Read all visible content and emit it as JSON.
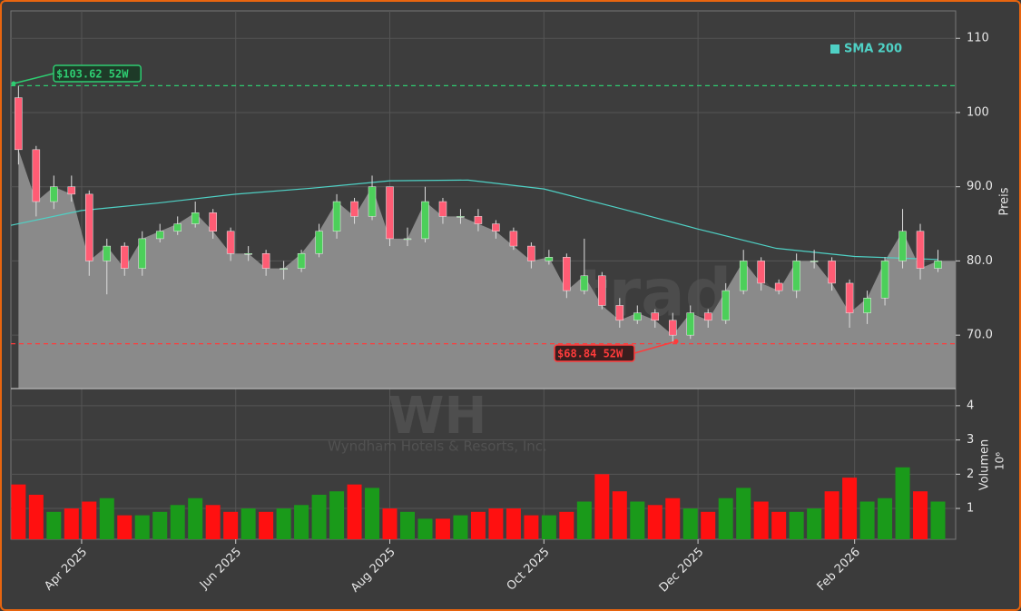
{
  "watermark": {
    "site": "forexsignale.trade",
    "ticker": "WH",
    "company": "Wyndham Hotels & Resorts, Inc."
  },
  "chart_data": [
    {
      "type": "candlestick",
      "y_label": "Preis",
      "xlim": [
        "2025-03-04",
        "2026-03-13"
      ],
      "ylim": [
        62.8,
        113.7
      ],
      "yticks": [
        {
          "value": 70,
          "label": "70.0"
        },
        {
          "value": 80,
          "label": "80.0"
        },
        {
          "value": 90,
          "label": "90.0"
        },
        100,
        110
      ],
      "grid": true,
      "up_color": "#4ccf5a",
      "down_color": "#ff5c74",
      "area_color": "#8a8a8a",
      "x": [
        "2025-03-07",
        "2025-03-14",
        "2025-03-21",
        "2025-03-28",
        "2025-04-04",
        "2025-04-11",
        "2025-04-18",
        "2025-04-25",
        "2025-05-02",
        "2025-05-09",
        "2025-05-16",
        "2025-05-23",
        "2025-05-30",
        "2025-06-06",
        "2025-06-13",
        "2025-06-20",
        "2025-06-27",
        "2025-07-04",
        "2025-07-11",
        "2025-07-18",
        "2025-07-25",
        "2025-08-01",
        "2025-08-08",
        "2025-08-15",
        "2025-08-22",
        "2025-08-29",
        "2025-09-05",
        "2025-09-12",
        "2025-09-19",
        "2025-09-26",
        "2025-10-03",
        "2025-10-10",
        "2025-10-17",
        "2025-10-24",
        "2025-10-31",
        "2025-11-07",
        "2025-11-14",
        "2025-11-21",
        "2025-11-28",
        "2025-12-05",
        "2025-12-12",
        "2025-12-19",
        "2025-12-26",
        "2026-01-02",
        "2026-01-09",
        "2026-01-16",
        "2026-01-23",
        "2026-01-30",
        "2026-02-06",
        "2026-02-13",
        "2026-02-20",
        "2026-02-27",
        "2026-03-06"
      ],
      "open": [
        102,
        95,
        88,
        90,
        89,
        80,
        82,
        79,
        83,
        84,
        85,
        86.5,
        84,
        81,
        81,
        79,
        79,
        81,
        84,
        88,
        86,
        90,
        83,
        83,
        88,
        86,
        86,
        85,
        84,
        82,
        80,
        80.5,
        76,
        78,
        74,
        72,
        73,
        72,
        70,
        73,
        72,
        76,
        80,
        77,
        76,
        80,
        80,
        77,
        73,
        75,
        80,
        84,
        79
      ],
      "high": [
        103.62,
        95.5,
        91.5,
        91.5,
        89.5,
        83,
        82.5,
        84,
        85,
        86,
        88,
        87,
        84.5,
        82,
        81.5,
        80,
        81.5,
        85,
        89,
        88.5,
        91.5,
        90,
        84.5,
        90,
        88.5,
        87,
        87,
        85.5,
        84.5,
        82.5,
        81.5,
        81,
        83,
        78.5,
        75,
        74,
        73.5,
        73,
        74,
        73.5,
        77,
        81.5,
        80.5,
        77.5,
        81,
        81.5,
        80.5,
        77.5,
        76,
        80.5,
        87,
        85,
        81.5
      ],
      "low": [
        93,
        86,
        87,
        88,
        78,
        75.5,
        78,
        78,
        82.5,
        83.5,
        84.5,
        83,
        80,
        80,
        78,
        77.5,
        78.5,
        80.5,
        83,
        85,
        85.5,
        82,
        82,
        82.5,
        85,
        85,
        84,
        83,
        81.5,
        79,
        79.5,
        75,
        75.5,
        73.5,
        71,
        71.5,
        71,
        68.84,
        69.5,
        71,
        71.5,
        75.5,
        76,
        75.5,
        75,
        79,
        76,
        71,
        71.5,
        74,
        79,
        77.5,
        78.5
      ],
      "close": [
        95,
        88,
        90,
        89,
        80,
        82,
        79,
        83,
        84,
        85,
        86.5,
        84,
        81,
        81,
        79,
        79,
        81,
        84,
        88,
        86,
        90,
        83,
        83,
        88,
        86,
        86,
        85,
        84,
        82,
        80,
        80.5,
        76,
        78,
        74,
        72,
        73,
        72,
        70,
        73,
        72,
        76,
        80,
        77,
        76,
        80,
        80,
        77,
        73,
        75,
        80,
        84,
        79,
        80
      ],
      "series": [
        {
          "name": "SMA 200",
          "color": "#4fd1c5",
          "x": [
            "2025-03-04",
            "2025-04-01",
            "2025-05-01",
            "2025-06-01",
            "2025-07-01",
            "2025-08-01",
            "2025-09-01",
            "2025-10-01",
            "2025-11-01",
            "2025-12-01",
            "2026-01-01",
            "2026-02-01",
            "2026-03-06"
          ],
          "values": [
            84.8,
            86.8,
            87.8,
            89.0,
            89.8,
            90.8,
            90.9,
            89.7,
            87.0,
            84.3,
            81.7,
            80.6,
            80.2
          ]
        }
      ],
      "annotations": [
        {
          "text": "$103.62 52W",
          "value": 103.62,
          "color": "#2ecc71"
        },
        {
          "text": "$68.84 52W",
          "value": 68.84,
          "color": "#ff3b3b"
        }
      ]
    },
    {
      "type": "bar",
      "y_label": "Volumen",
      "y_unit": "10⁶",
      "xlim": [
        "2025-03-04",
        "2026-03-13"
      ],
      "xticks": [
        {
          "value": "2025-04-01",
          "label": "Apr 2025"
        },
        {
          "value": "2025-06-01",
          "label": "Jun 2025"
        },
        {
          "value": "2025-08-01",
          "label": "Aug 2025"
        },
        {
          "value": "2025-10-01",
          "label": "Oct 2025"
        },
        {
          "value": "2025-12-01",
          "label": "Dec 2025"
        },
        {
          "value": "2026-02-01",
          "label": "Feb 2026"
        }
      ],
      "ylim": [
        0.1,
        4.5
      ],
      "yticks": [
        1,
        2,
        3,
        4
      ],
      "grid": true,
      "up_color": "#1a9a1a",
      "down_color": "#ff1010",
      "x": [
        "2025-03-07",
        "2025-03-14",
        "2025-03-21",
        "2025-03-28",
        "2025-04-04",
        "2025-04-11",
        "2025-04-18",
        "2025-04-25",
        "2025-05-02",
        "2025-05-09",
        "2025-05-16",
        "2025-05-23",
        "2025-05-30",
        "2025-06-06",
        "2025-06-13",
        "2025-06-20",
        "2025-06-27",
        "2025-07-04",
        "2025-07-11",
        "2025-07-18",
        "2025-07-25",
        "2025-08-01",
        "2025-08-08",
        "2025-08-15",
        "2025-08-22",
        "2025-08-29",
        "2025-09-05",
        "2025-09-12",
        "2025-09-19",
        "2025-09-26",
        "2025-10-03",
        "2025-10-10",
        "2025-10-17",
        "2025-10-24",
        "2025-10-31",
        "2025-11-07",
        "2025-11-14",
        "2025-11-21",
        "2025-11-28",
        "2025-12-05",
        "2025-12-12",
        "2025-12-19",
        "2025-12-26",
        "2026-01-02",
        "2026-01-09",
        "2026-01-16",
        "2026-01-23",
        "2026-01-30",
        "2026-02-06",
        "2026-02-13",
        "2026-02-20",
        "2026-02-27",
        "2026-03-06"
      ],
      "values": [
        1.7,
        1.4,
        0.9,
        1.0,
        1.2,
        1.3,
        0.8,
        0.8,
        0.9,
        1.1,
        1.3,
        1.1,
        0.9,
        1.0,
        0.9,
        1.0,
        1.1,
        1.4,
        1.5,
        1.7,
        1.6,
        1.0,
        0.9,
        0.7,
        0.7,
        0.8,
        0.9,
        1.0,
        1.0,
        0.8,
        0.8,
        0.9,
        1.2,
        2.0,
        1.5,
        1.2,
        1.1,
        1.3,
        1.0,
        0.9,
        1.3,
        1.6,
        1.2,
        0.9,
        0.9,
        1.0,
        1.5,
        1.9,
        1.2,
        1.3,
        2.2,
        1.5,
        1.2
      ]
    }
  ]
}
